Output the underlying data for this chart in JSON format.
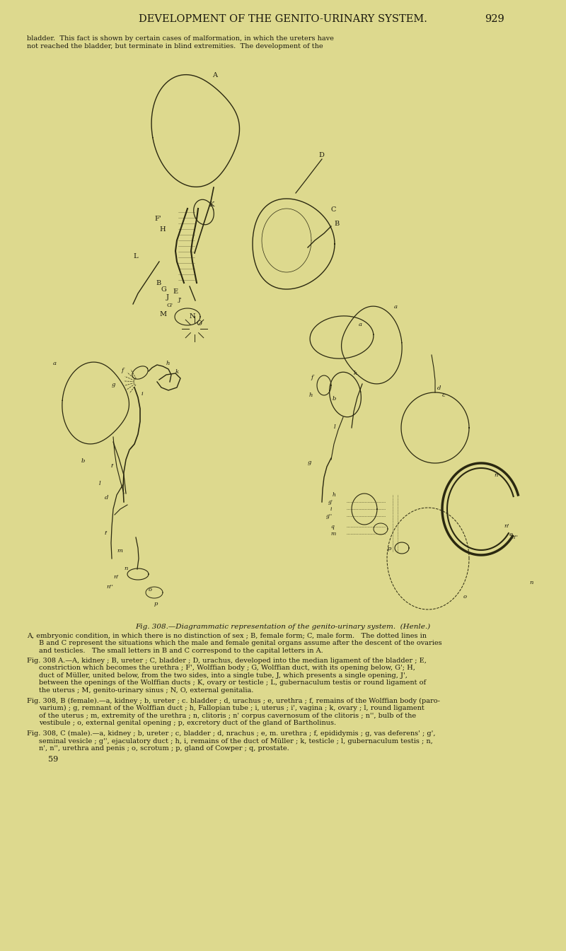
{
  "bg_color": "#ddd98e",
  "text_color": "#1a180e",
  "line_color": "#2a2810",
  "title": "DEVELOPMENT OF THE GENITO-URINARY SYSTEM.",
  "page_num": "929",
  "intro1": "bladder.  This fact is shown by certain cases of malformation, in which the ureters have",
  "intro2": "not reached the bladder, but terminate in blind extremities.  The development of the",
  "caption": "Fig. 308.—Diagrammatic representation of the genito-urinary system.  (Henle.)",
  "leg_A1": "A, embryonic condition, in which there is no distinction of sex ; B, female form; C, male form.   The dotted lines in",
  "leg_A2": "B and C represent the situations which the male and female genital organs assume after the descent of the ovaries",
  "leg_A3": "and testicles.   The small letters in B and C correspond to the capital letters in A.",
  "leg_308A_1": "Fig. 308 A.—A, kidney ; B, ureter ; C, bladder ; D, urachus, developed into the median ligament of the bladder ; E,",
  "leg_308A_2": "constriction which becomes the urethra ; F', Wolffian body ; G, Wolffian duct, with its opening below, G'; H,",
  "leg_308A_3": "duct of Müller, united below, from the two sides, into a single tube, J, which presents a single opening, J',",
  "leg_308A_4": "between the openings of the Wolffian ducts ; K, ovary or testicle ; L, gubernaculum testis or round ligament of",
  "leg_308A_5": "the uterus ; M, genito-urinary sinus ; N, O, external genitalia.",
  "leg_308B_1": "Fig. 308, B (female).—a, kidney ; b, ureter ; c. bladder ; d, urachus ; e, urethra ; f, remains of the Wolffian body (paro-",
  "leg_308B_2": "varium) ; g, remnant of the Wolffian duct ; h, Fallopian tube ; i, uterus ; i', vagina ; k, ovary ; l, round ligament",
  "leg_308B_3": "of the uterus ; m, extremity of the urethra ; n, clitoris ; n' corpus cavernosum of the clitoris ; n'', bulb of the",
  "leg_308B_4": "vestibule ; o, external genital opening ; p, excretory duct of the gland of Bartholinus.",
  "leg_308C_1": "Fig. 308, C (male).—a, kidney ; b, ureter ; c, bladder ; d, nrachus ; e, m. urethra ; f, epididymis ; g, vas deferens' ; g',",
  "leg_308C_2": "seminal vesicle ; g'', ejaculatory duct ; h, i, remains of the duct of Müller ; k, testicle ; l, gubernaculum testis ; n,",
  "leg_308C_3": "n', n'', urethra and penis ; o, scrotum ; p, gland of Cowper ; q, prostate.",
  "page_num_bottom": "59",
  "fs_title": 10.5,
  "fs_body": 7.0,
  "fs_cap": 7.5,
  "fs_lbl": 6.0
}
